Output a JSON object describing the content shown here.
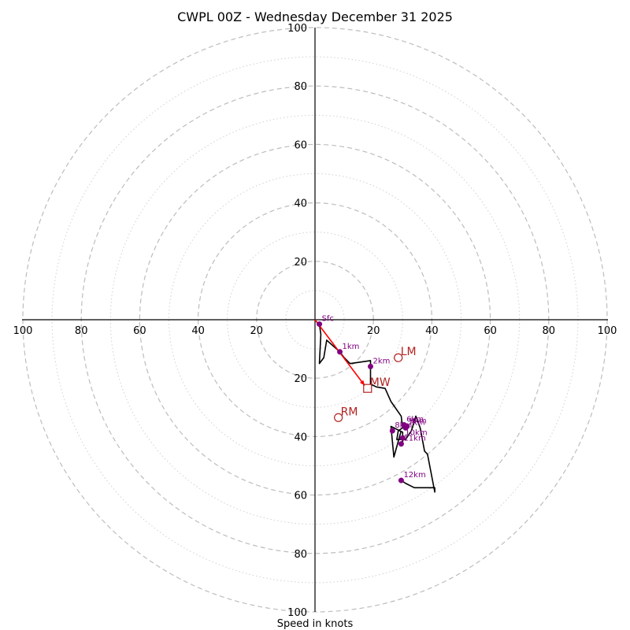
{
  "chart_data": {
    "type": "hodograph",
    "title": "CWPL 00Z - Wednesday December 31 2025",
    "xlabel": "Speed in knots",
    "range": [
      -100,
      100
    ],
    "major_rings": [
      20,
      40,
      60,
      80,
      100
    ],
    "minor_rings": [
      10,
      30,
      50,
      70,
      90
    ],
    "x_tick_labels": [
      "100",
      "80",
      "60",
      "40",
      "20",
      "20",
      "40",
      "60",
      "80",
      "100"
    ],
    "y_tick_labels": [
      "100",
      "80",
      "60",
      "40",
      "20",
      "20",
      "40",
      "60",
      "80",
      "100"
    ],
    "hodograph_uv": [
      [
        1.5,
        -1.5
      ],
      [
        2,
        -5
      ],
      [
        1.5,
        -15
      ],
      [
        3,
        -13
      ],
      [
        4,
        -7
      ],
      [
        8.5,
        -11
      ],
      [
        10,
        -13
      ],
      [
        12,
        -15
      ],
      [
        19,
        -14
      ],
      [
        19,
        -22
      ],
      [
        21,
        -23
      ],
      [
        24,
        -23.5
      ],
      [
        26,
        -28
      ],
      [
        29.5,
        -33
      ],
      [
        30,
        -37
      ],
      [
        28.5,
        -38
      ],
      [
        28,
        -41
      ],
      [
        31,
        -41
      ],
      [
        33,
        -38
      ],
      [
        34.5,
        -33
      ],
      [
        36,
        -37
      ],
      [
        37.5,
        -45
      ],
      [
        38.5,
        -46
      ],
      [
        41,
        -59
      ],
      [
        41,
        -57.5
      ],
      [
        34,
        -57.5
      ],
      [
        31,
        -56
      ],
      [
        29.5,
        -55
      ]
    ],
    "hodograph_loop_uv": [
      [
        29.5,
        -38
      ],
      [
        27,
        -47
      ],
      [
        26,
        -36.5
      ],
      [
        30,
        -38.5
      ],
      [
        30,
        -42.5
      ],
      [
        30,
        -40
      ]
    ],
    "height_markers": [
      {
        "label": "Sfc",
        "u": 1.5,
        "v": -1.5
      },
      {
        "label": "1km",
        "u": 8.5,
        "v": -11
      },
      {
        "label": "2km",
        "u": 19,
        "v": -16
      },
      {
        "label": "6km",
        "u": 30.5,
        "v": -36
      },
      {
        "label": "7km",
        "u": 31,
        "v": -37
      },
      {
        "label": "8km",
        "u": 26.5,
        "v": -38
      },
      {
        "label": "9km",
        "u": 31.5,
        "v": -36.5
      },
      {
        "label": "10km",
        "u": 30,
        "v": -40.5
      },
      {
        "label": "11km",
        "u": 29.5,
        "v": -42.5
      },
      {
        "label": "12km",
        "u": 29.5,
        "v": -55
      }
    ],
    "storm_motion": [
      {
        "label": "LM",
        "u": 28.5,
        "v": -13,
        "marker": "circle"
      },
      {
        "label": "MW",
        "u": 18,
        "v": -23.5,
        "marker": "square"
      },
      {
        "label": "RM",
        "u": 8,
        "v": -33.5,
        "marker": "circle"
      }
    ],
    "shear_vector": {
      "from": [
        0,
        0
      ],
      "to": [
        17,
        -22.5
      ]
    },
    "colors": {
      "hodograph": "#000000",
      "height_markers": "#800080",
      "storm_motion": "#b22222",
      "shear_vector": "#ff0000",
      "rings": "#bdbdbd"
    }
  }
}
